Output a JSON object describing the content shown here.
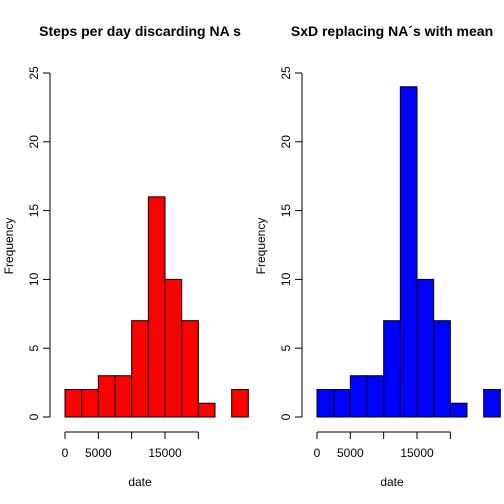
{
  "chart_data": [
    {
      "type": "bar",
      "title": "Steps per day discarding NA s",
      "xlabel": "date",
      "ylabel": "Frequency",
      "bin_width": 2500,
      "bin_start": 0,
      "values": [
        2,
        2,
        3,
        3,
        7,
        16,
        10,
        7,
        1,
        0,
        2
      ],
      "xlim": [
        0,
        22500
      ],
      "ylim": [
        0,
        25
      ],
      "x_ticks": [
        0,
        5000,
        15000
      ],
      "x_tick_marks": [
        0,
        5000,
        10000,
        15000,
        20000
      ],
      "y_ticks": [
        0,
        5,
        10,
        15,
        20,
        25
      ],
      "color": "#ff0000"
    },
    {
      "type": "bar",
      "title": "SxD replacing NA´s with mean",
      "xlabel": "date",
      "ylabel": "Frequency",
      "bin_width": 2500,
      "bin_start": 0,
      "values": [
        2,
        2,
        3,
        3,
        7,
        24,
        10,
        7,
        1,
        0,
        2
      ],
      "xlim": [
        0,
        22500
      ],
      "ylim": [
        0,
        25
      ],
      "x_ticks": [
        0,
        5000,
        15000
      ],
      "x_tick_marks": [
        0,
        5000,
        10000,
        15000,
        20000
      ],
      "y_ticks": [
        0,
        5,
        10,
        15,
        20,
        25
      ],
      "color": "#0000ff"
    }
  ]
}
